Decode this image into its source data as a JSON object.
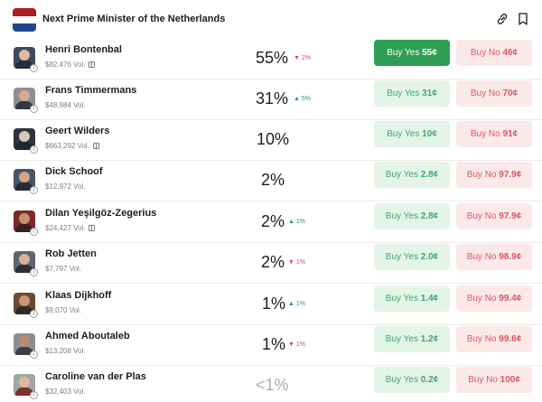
{
  "header": {
    "title": "Next Prime Minister of the Netherlands",
    "flag_colors": [
      "#ae1c28",
      "#ffffff",
      "#21468b"
    ],
    "icons": [
      "link-icon",
      "bookmark-icon"
    ]
  },
  "colors": {
    "yes_bg": "#e4f4e9",
    "yes_text": "#3ea66a",
    "yes_active": "#2f9e54",
    "no_bg": "#fbe9ea",
    "no_text": "#d85663",
    "up": "#2e9a55",
    "down": "#d8495a"
  },
  "candidates": [
    {
      "name": "Henri Bontenbal",
      "volume": "$82,476 Vol.",
      "gift": true,
      "percent": "55%",
      "change": "2%",
      "direction": "down",
      "yes_label": "Buy Yes",
      "yes_price": "55¢",
      "no_label": "Buy No",
      "no_price": "46¢",
      "yes_active": true
    },
    {
      "name": "Frans Timmermans",
      "volume": "$48,984 Vol.",
      "gift": false,
      "percent": "31%",
      "change": "5%",
      "direction": "up",
      "yes_label": "Buy Yes",
      "yes_price": "31¢",
      "no_label": "Buy No",
      "no_price": "70¢"
    },
    {
      "name": "Geert Wilders",
      "volume": "$663,292 Vol.",
      "gift": true,
      "percent": "10%",
      "change": "",
      "direction": "",
      "yes_label": "Buy Yes",
      "yes_price": "10¢",
      "no_label": "Buy No",
      "no_price": "91¢"
    },
    {
      "name": "Dick Schoof",
      "volume": "$12,972 Vol.",
      "gift": false,
      "percent": "2%",
      "change": "",
      "direction": "",
      "yes_label": "Buy Yes",
      "yes_price": "2.8¢",
      "no_label": "Buy No",
      "no_price": "97.9¢"
    },
    {
      "name": "Dilan Yeşilgöz-Zegerius",
      "volume": "$24,427 Vol.",
      "gift": true,
      "percent": "2%",
      "change": "1%",
      "direction": "up",
      "yes_label": "Buy Yes",
      "yes_price": "2.8¢",
      "no_label": "Buy No",
      "no_price": "97.9¢"
    },
    {
      "name": "Rob Jetten",
      "volume": "$7,797 Vol.",
      "gift": false,
      "percent": "2%",
      "change": "1%",
      "direction": "down",
      "yes_label": "Buy Yes",
      "yes_price": "2.0¢",
      "no_label": "Buy No",
      "no_price": "98.9¢"
    },
    {
      "name": "Klaas Dijkhoff",
      "volume": "$9,070 Vol.",
      "gift": false,
      "percent": "1%",
      "change": "1%",
      "direction": "up",
      "yes_label": "Buy Yes",
      "yes_price": "1.4¢",
      "no_label": "Buy No",
      "no_price": "99.4¢"
    },
    {
      "name": "Ahmed Aboutaleb",
      "volume": "$13,208 Vol.",
      "gift": false,
      "percent": "1%",
      "change": "1%",
      "direction": "down",
      "yes_label": "Buy Yes",
      "yes_price": "1.2¢",
      "no_label": "Buy No",
      "no_price": "99.6¢"
    },
    {
      "name": "Caroline van der Plas",
      "volume": "$32,403 Vol.",
      "gift": false,
      "percent": "<1%",
      "change": "",
      "direction": "",
      "muted": true,
      "yes_label": "Buy Yes",
      "yes_price": "0.2¢",
      "no_label": "Buy No",
      "no_price": "100¢"
    }
  ]
}
